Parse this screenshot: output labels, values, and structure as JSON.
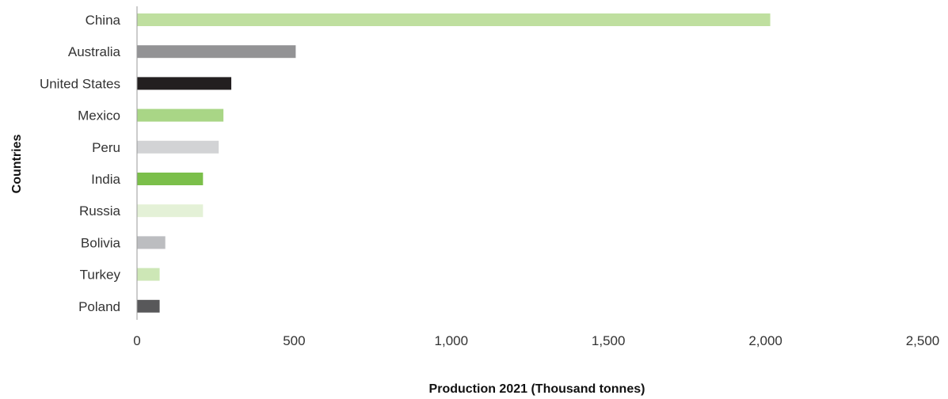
{
  "chart_data": {
    "type": "bar",
    "orientation": "horizontal",
    "categories": [
      "China",
      "Australia",
      "United States",
      "Mexico",
      "Peru",
      "India",
      "Russia",
      "Bolivia",
      "Turkey",
      "Poland"
    ],
    "values": [
      2015,
      505,
      300,
      275,
      260,
      210,
      210,
      90,
      72,
      72
    ],
    "bar_colors": [
      "#bfdf9f",
      "#939395",
      "#231f20",
      "#a9d686",
      "#d2d3d5",
      "#7bbf4a",
      "#e4f1d7",
      "#bcbdc0",
      "#cde7b6",
      "#58585a"
    ],
    "xlabel": "Production 2021 (Thousand tonnes)",
    "ylabel": "Countries",
    "xlim": [
      0,
      2500
    ],
    "xticks": [
      0,
      500,
      1000,
      1500,
      2000,
      2500
    ],
    "xtick_labels": [
      "0",
      "500",
      "1,000",
      "1,500",
      "2,000",
      "2,500"
    ],
    "grid": false,
    "legend": "none"
  }
}
